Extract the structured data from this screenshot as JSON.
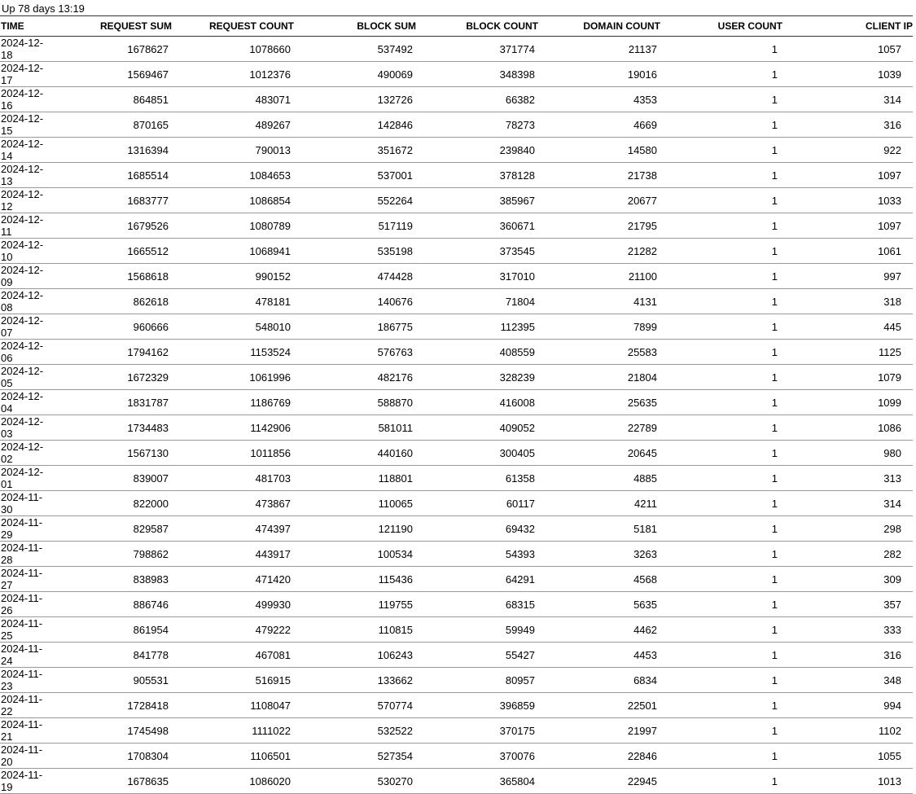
{
  "uptime": "Up 78 days 13:19",
  "columns": [
    "TIME",
    "REQUEST SUM",
    "REQUEST COUNT",
    "BLOCK SUM",
    "BLOCK COUNT",
    "DOMAIN COUNT",
    "USER COUNT",
    "CLIENT IP"
  ],
  "rows": [
    [
      "2024-12-18",
      "1678627",
      "1078660",
      "537492",
      "371774",
      "21137",
      "1",
      "1057"
    ],
    [
      "2024-12-17",
      "1569467",
      "1012376",
      "490069",
      "348398",
      "19016",
      "1",
      "1039"
    ],
    [
      "2024-12-16",
      "864851",
      "483071",
      "132726",
      "66382",
      "4353",
      "1",
      "314"
    ],
    [
      "2024-12-15",
      "870165",
      "489267",
      "142846",
      "78273",
      "4669",
      "1",
      "316"
    ],
    [
      "2024-12-14",
      "1316394",
      "790013",
      "351672",
      "239840",
      "14580",
      "1",
      "922"
    ],
    [
      "2024-12-13",
      "1685514",
      "1084653",
      "537001",
      "378128",
      "21738",
      "1",
      "1097"
    ],
    [
      "2024-12-12",
      "1683777",
      "1086854",
      "552264",
      "385967",
      "20677",
      "1",
      "1033"
    ],
    [
      "2024-12-11",
      "1679526",
      "1080789",
      "517119",
      "360671",
      "21795",
      "1",
      "1097"
    ],
    [
      "2024-12-10",
      "1665512",
      "1068941",
      "535198",
      "373545",
      "21282",
      "1",
      "1061"
    ],
    [
      "2024-12-09",
      "1568618",
      "990152",
      "474428",
      "317010",
      "21100",
      "1",
      "997"
    ],
    [
      "2024-12-08",
      "862618",
      "478181",
      "140676",
      "71804",
      "4131",
      "1",
      "318"
    ],
    [
      "2024-12-07",
      "960666",
      "548010",
      "186775",
      "112395",
      "7899",
      "1",
      "445"
    ],
    [
      "2024-12-06",
      "1794162",
      "1153524",
      "576763",
      "408559",
      "25583",
      "1",
      "1125"
    ],
    [
      "2024-12-05",
      "1672329",
      "1061996",
      "482176",
      "328239",
      "21804",
      "1",
      "1079"
    ],
    [
      "2024-12-04",
      "1831787",
      "1186769",
      "588870",
      "416008",
      "25635",
      "1",
      "1099"
    ],
    [
      "2024-12-03",
      "1734483",
      "1142906",
      "581011",
      "409052",
      "22789",
      "1",
      "1086"
    ],
    [
      "2024-12-02",
      "1567130",
      "1011856",
      "440160",
      "300405",
      "20645",
      "1",
      "980"
    ],
    [
      "2024-12-01",
      "839007",
      "481703",
      "118801",
      "61358",
      "4885",
      "1",
      "313"
    ],
    [
      "2024-11-30",
      "822000",
      "473867",
      "110065",
      "60117",
      "4211",
      "1",
      "314"
    ],
    [
      "2024-11-29",
      "829587",
      "474397",
      "121190",
      "69432",
      "5181",
      "1",
      "298"
    ],
    [
      "2024-11-28",
      "798862",
      "443917",
      "100534",
      "54393",
      "3263",
      "1",
      "282"
    ],
    [
      "2024-11-27",
      "838983",
      "471420",
      "115436",
      "64291",
      "4568",
      "1",
      "309"
    ],
    [
      "2024-11-26",
      "886746",
      "499930",
      "119755",
      "68315",
      "5635",
      "1",
      "357"
    ],
    [
      "2024-11-25",
      "861954",
      "479222",
      "110815",
      "59949",
      "4462",
      "1",
      "333"
    ],
    [
      "2024-11-24",
      "841778",
      "467081",
      "106243",
      "55427",
      "4453",
      "1",
      "316"
    ],
    [
      "2024-11-23",
      "905531",
      "516915",
      "133662",
      "80957",
      "6834",
      "1",
      "348"
    ],
    [
      "2024-11-22",
      "1728418",
      "1108047",
      "570774",
      "396859",
      "22501",
      "1",
      "994"
    ],
    [
      "2024-11-21",
      "1745498",
      "1111022",
      "532522",
      "370175",
      "21997",
      "1",
      "1102"
    ],
    [
      "2024-11-20",
      "1708304",
      "1106501",
      "527354",
      "370076",
      "22846",
      "1",
      "1055"
    ],
    [
      "2024-11-19",
      "1678635",
      "1086020",
      "530270",
      "365804",
      "22945",
      "1",
      "1013"
    ]
  ]
}
